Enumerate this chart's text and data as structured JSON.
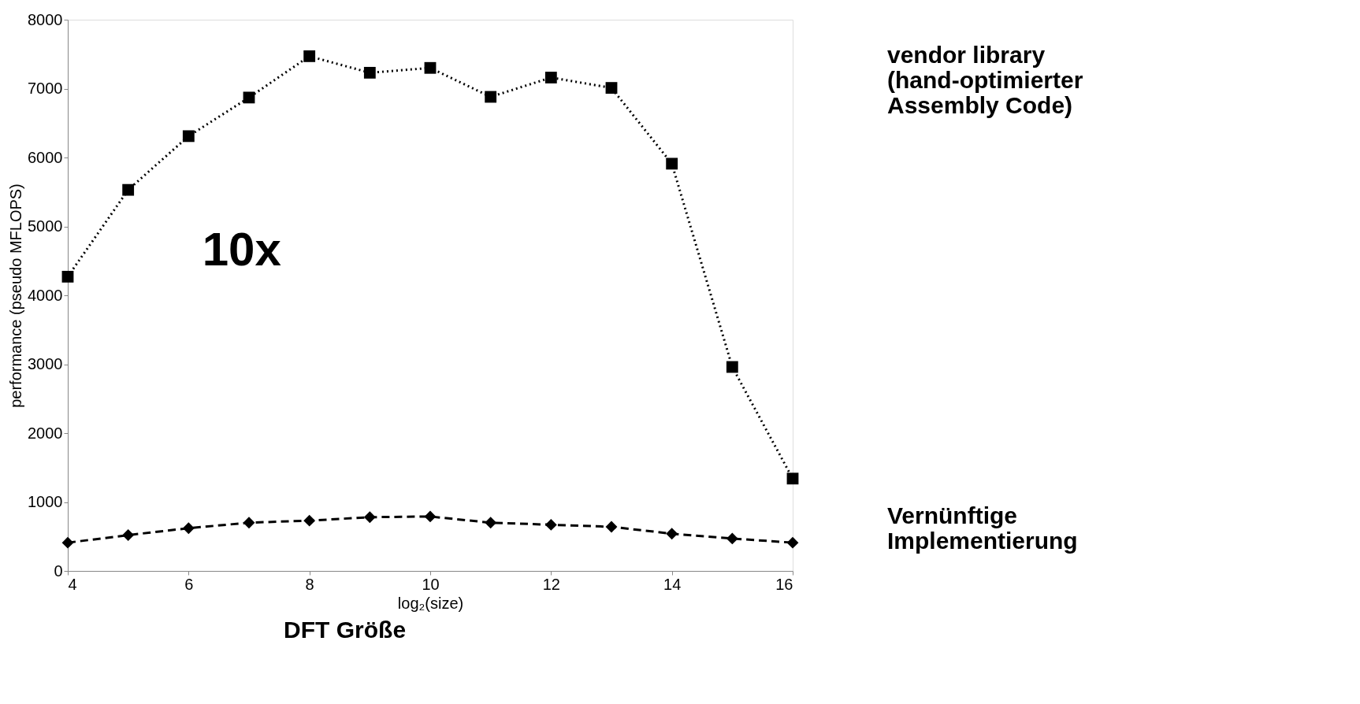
{
  "chart_data": {
    "type": "line",
    "title": "DFT Größe",
    "xlabel": "log₂(size)",
    "ylabel": "performance (pseudo MFLOPS)",
    "x": [
      4,
      5,
      6,
      7,
      8,
      9,
      10,
      11,
      12,
      13,
      14,
      15,
      16
    ],
    "series": [
      {
        "name": "vendor library\n(hand-optimierter\nAssembly Code)",
        "color": "#000000",
        "marker": "square",
        "line_style": "dotted",
        "values": [
          4270,
          5530,
          6310,
          6870,
          7470,
          7230,
          7300,
          6880,
          7160,
          7010,
          5910,
          2960,
          1340
        ]
      },
      {
        "name": "Vernünftige\nImplementierung",
        "color": "#000000",
        "marker": "diamond",
        "line_style": "dashed",
        "values": [
          410,
          520,
          620,
          700,
          730,
          780,
          790,
          700,
          670,
          640,
          540,
          470,
          410
        ]
      }
    ],
    "xlim": [
      4,
      16
    ],
    "xticks": [
      4,
      6,
      8,
      10,
      12,
      14,
      16
    ],
    "ylim": [
      0,
      8000
    ],
    "yticks": [
      0,
      1000,
      2000,
      3000,
      4000,
      5000,
      6000,
      7000,
      8000
    ],
    "annotations": [
      "10x"
    ]
  }
}
